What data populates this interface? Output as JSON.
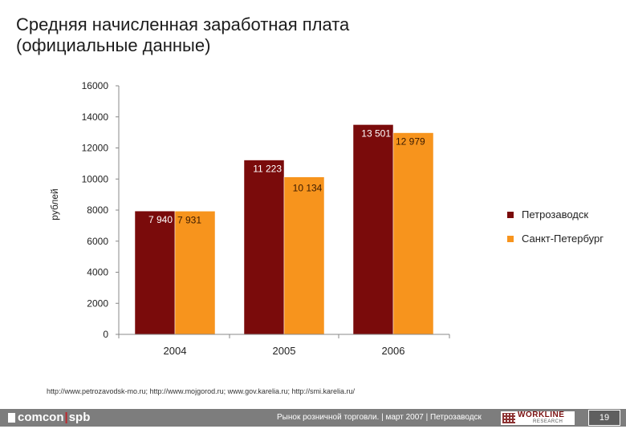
{
  "title": "Средняя начисленная заработная плата (официальные данные)",
  "chart_data": {
    "type": "bar",
    "categories": [
      "2004",
      "2005",
      "2006"
    ],
    "series": [
      {
        "name": "Петрозаводск",
        "values": [
          7940,
          11223,
          13501
        ],
        "labels": [
          "7 940",
          "11 223",
          "13 501"
        ],
        "color": "#7a0b0b"
      },
      {
        "name": "Санкт-Петербург",
        "values": [
          7931,
          10134,
          12979
        ],
        "labels": [
          "7 931",
          "10 134",
          "12 979"
        ],
        "color": "#f7941d"
      }
    ],
    "ylabel": "рублей",
    "ylim": [
      0,
      16000
    ],
    "yticks": [
      0,
      2000,
      4000,
      6000,
      8000,
      10000,
      12000,
      14000,
      16000
    ],
    "ytick_labels": [
      "0",
      "2000",
      "4000",
      "6000",
      "8000",
      "10000",
      "12000",
      "14000",
      "16000"
    ],
    "legend_position": "right"
  },
  "source": "http://www.petrozavodsk-mo.ru; http://www.mojgorod.ru; www.gov.karelia.ru; http://smi.karelia.ru/",
  "footer": {
    "brand_left": "comcon",
    "brand_right": "spb",
    "caption": "Рынок розничной торговли. | март 2007 | Петрозаводск",
    "logo_text": "WORKLINE",
    "logo_sub": "RESEARCH",
    "page_number": "19"
  },
  "colors": {
    "petrozavodsk": "#7a0b0b",
    "spb": "#f7941d",
    "footer_bg": "#7d7d7d"
  }
}
